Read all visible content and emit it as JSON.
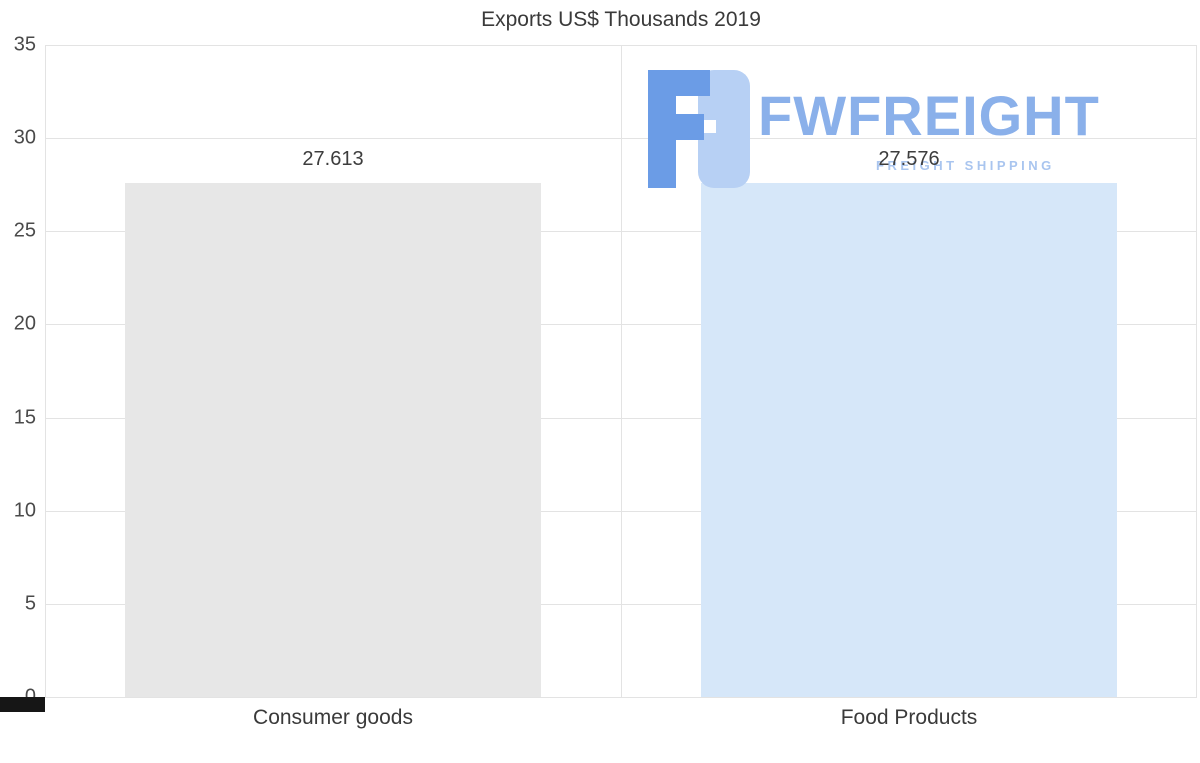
{
  "chart_data": {
    "type": "bar",
    "title": "Exports US$ Thousands 2019",
    "categories": [
      "Consumer goods",
      "Food Products"
    ],
    "values": [
      27.613,
      27.576
    ],
    "value_labels": [
      "27.613",
      "27.576"
    ],
    "bar_colors": [
      "#e7e7e7",
      "#d6e7f9"
    ],
    "xlabel": "",
    "ylabel": "",
    "ylim": [
      0,
      35
    ],
    "yticks": [
      0,
      5,
      10,
      15,
      20,
      25,
      30,
      35
    ],
    "grid": true,
    "legend": "none"
  },
  "watermark": {
    "brand": "FWFREIGHT",
    "tagline": "FREIGHT SHIPPING",
    "brand_color": "#8ab0ea",
    "tagline_color": "#a9c5ef",
    "logo_dark_blue": "#6b9ce6",
    "logo_light_blue": "#b7d0f4"
  }
}
